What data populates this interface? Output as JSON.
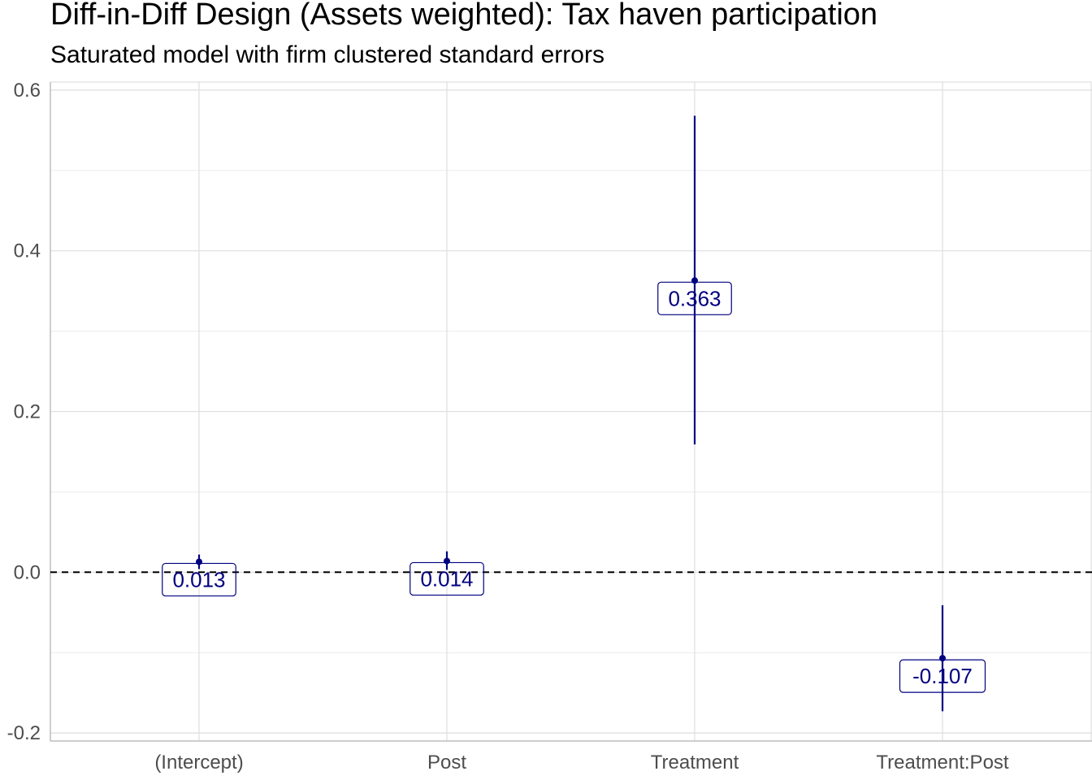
{
  "chart_data": {
    "type": "scatter",
    "title": "Diff-in-Diff Design (Assets weighted): Tax haven participation",
    "subtitle": "Saturated model with firm clustered standard errors",
    "xlabel": "",
    "ylabel": "",
    "categories": [
      "(Intercept)",
      "Post",
      "Treatment",
      "Treatment:Post"
    ],
    "estimates": [
      0.013,
      0.014,
      0.363,
      -0.107
    ],
    "ci_low": [
      0.004,
      0.003,
      0.159,
      -0.173
    ],
    "ci_high": [
      0.022,
      0.026,
      0.568,
      -0.041
    ],
    "value_labels": [
      "0.013",
      "0.014",
      "0.363",
      "-0.107"
    ],
    "ylim": [
      -0.21,
      0.61
    ],
    "yticks": [
      -0.2,
      0.0,
      0.2,
      0.4,
      0.6
    ],
    "ytick_labels": [
      "-0.2",
      "0.0",
      "0.2",
      "0.4",
      "0.6"
    ],
    "reference_line": 0.0,
    "grid": true,
    "legend": "none",
    "colors": {
      "point": "#000080",
      "label_text": "#000080",
      "grid": "#ebebeb",
      "reference": "#000000"
    }
  }
}
